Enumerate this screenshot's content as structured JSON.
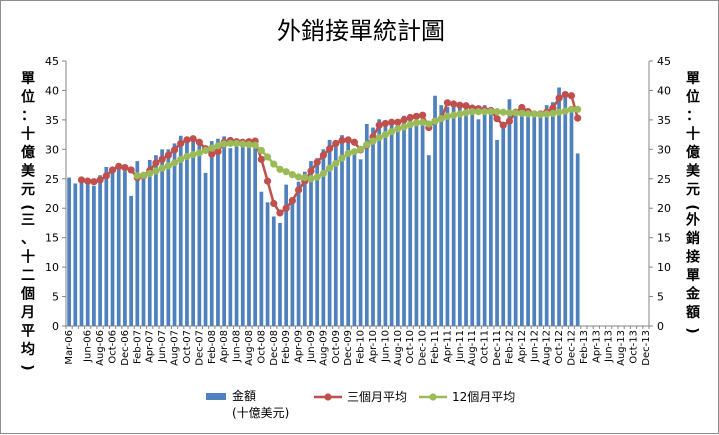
{
  "chart_data": {
    "type": "bar",
    "title": "外銷接單統計圖",
    "ylabel_left": "單位：十億美元(三、十二個月平均)",
    "ylabel_right": "單位：十億美元(外銷接單金額)",
    "ylim": [
      0,
      45
    ],
    "yticks": [
      0,
      5,
      10,
      15,
      20,
      25,
      30,
      35,
      40,
      45
    ],
    "grid": false,
    "legend_position": "bottom",
    "x": [
      "Mar-06",
      "Apr-06",
      "May-06",
      "Jun-06",
      "Jul-06",
      "Aug-06",
      "Sep-06",
      "Oct-06",
      "Nov-06",
      "Dec-06",
      "Jan-07",
      "Feb-07",
      "Mar-07",
      "Apr-07",
      "May-07",
      "Jun-07",
      "Jul-07",
      "Aug-07",
      "Sep-07",
      "Oct-07",
      "Nov-07",
      "Dec-07",
      "Jan-08",
      "Feb-08",
      "Mar-08",
      "Apr-08",
      "May-08",
      "Jun-08",
      "Jul-08",
      "Aug-08",
      "Sep-08",
      "Oct-08",
      "Nov-08",
      "Dec-08",
      "Jan-09",
      "Feb-09",
      "Mar-09",
      "Apr-09",
      "May-09",
      "Jun-09",
      "Jul-09",
      "Aug-09",
      "Sep-09",
      "Oct-09",
      "Nov-09",
      "Dec-09",
      "Jan-10",
      "Feb-10",
      "Mar-10",
      "Apr-10",
      "May-10",
      "Jun-10",
      "Jul-10",
      "Aug-10",
      "Sep-10",
      "Oct-10",
      "Nov-10",
      "Dec-10",
      "Jan-11",
      "Feb-11",
      "Mar-11",
      "Apr-11",
      "May-11",
      "Jun-11",
      "Jul-11",
      "Aug-11",
      "Sep-11",
      "Oct-11",
      "Nov-11",
      "Dec-11",
      "Jan-12",
      "Feb-12",
      "Mar-12",
      "Apr-12",
      "May-12",
      "Jun-12",
      "Jul-12",
      "Aug-12",
      "Sep-12",
      "Oct-12",
      "Nov-12",
      "Dec-12",
      "Jan-13",
      "Feb-13",
      "Mar-13",
      "Apr-13",
      "May-13",
      "Jun-13",
      "Jul-13",
      "Aug-13",
      "Sep-13",
      "Oct-13",
      "Nov-13",
      "Dec-13"
    ],
    "tick_labels": [
      "Mar-06",
      "Jun-06",
      "Aug-06",
      "Oct-06",
      "Dec-06",
      "Feb-07",
      "Apr-07",
      "Jun-07",
      "Aug-07",
      "Oct-07",
      "Dec-07",
      "Feb-08",
      "Apr-08",
      "Jun-08",
      "Aug-08",
      "Oct-08",
      "Dec-08",
      "Feb-09",
      "Apr-09",
      "Jun-09",
      "Aug-09",
      "Oct-09",
      "Dec-09",
      "Feb-10",
      "Apr-10",
      "Jun-10",
      "Aug-10",
      "Oct-10",
      "Dec-10",
      "Feb-11",
      "Apr-11",
      "Jun-11",
      "Aug-11",
      "Oct-11",
      "Dec-11",
      "Feb-12",
      "Apr-12",
      "Jun-12",
      "Aug-12",
      "Oct-12",
      "Dec-12",
      "Feb-13",
      "Apr-13",
      "Jun-13",
      "Aug-13",
      "Oct-13",
      "Dec-13"
    ],
    "series": [
      {
        "name": "金額(十億美元)",
        "legend_lines": [
          "金額",
          "(十億美元)"
        ],
        "kind": "bar",
        "color": "#4f81bd",
        "values": [
          25.2,
          24.2,
          25.0,
          24.5,
          23.8,
          25.6,
          27.0,
          26.8,
          27.5,
          26.3,
          22.1,
          28.0,
          26.0,
          28.2,
          29.0,
          30.0,
          30.0,
          31.0,
          32.3,
          31.4,
          32.3,
          31.1,
          26.0,
          31.4,
          31.8,
          32.2,
          30.2,
          31.6,
          31.0,
          31.6,
          31.9,
          22.8,
          21.0,
          18.6,
          17.5,
          24.0,
          21.4,
          24.5,
          26.2,
          28.0,
          28.5,
          30.0,
          31.6,
          31.1,
          32.4,
          32.0,
          29.2,
          28.3,
          34.3,
          33.7,
          35.1,
          34.6,
          34.2,
          35.1,
          35.7,
          35.3,
          35.8,
          36.2,
          29.0,
          39.1,
          37.5,
          37.2,
          37.8,
          37.5,
          36.9,
          36.7,
          35.1,
          37.5,
          36.4,
          31.6,
          34.2,
          38.5,
          36.2,
          37.4,
          35.8,
          36.1,
          35.4,
          37.5,
          38.0,
          40.5,
          39.5,
          37.2,
          29.3,
          null,
          null,
          null,
          null,
          null,
          null,
          null,
          null,
          null,
          null,
          null
        ]
      },
      {
        "name": "三個月平均",
        "kind": "line",
        "color": "#c0504d",
        "values": [
          null,
          null,
          24.8,
          24.6,
          24.5,
          24.8,
          25.5,
          26.5,
          27.1,
          26.9,
          26.5,
          25.2,
          25.5,
          26.4,
          27.7,
          28.3,
          29.0,
          29.9,
          31.0,
          31.6,
          31.8,
          31.2,
          30.1,
          29.2,
          29.6,
          31.2,
          31.5,
          31.3,
          31.2,
          31.3,
          31.4,
          28.3,
          24.6,
          20.8,
          19.2,
          20.0,
          21.3,
          23.1,
          24.6,
          26.3,
          27.8,
          29.0,
          30.1,
          31.0,
          31.5,
          31.6,
          31.2,
          29.9,
          30.7,
          32.1,
          34.1,
          34.4,
          34.6,
          34.6,
          35.0,
          35.4,
          35.6,
          35.8,
          33.7,
          34.8,
          35.2,
          37.9,
          37.7,
          37.5,
          37.4,
          37.0,
          36.9,
          36.7,
          36.6,
          35.2,
          34.1,
          34.8,
          36.3,
          37.1,
          36.4,
          36.0,
          36.0,
          36.3,
          37.0,
          38.7,
          39.3,
          39.1,
          35.3,
          null,
          null,
          null,
          null,
          null,
          null,
          null,
          null,
          null,
          null,
          null
        ]
      },
      {
        "name": "12個月平均",
        "kind": "line",
        "color": "#9bbb59",
        "values": [
          null,
          null,
          null,
          null,
          null,
          null,
          null,
          null,
          null,
          null,
          null,
          25.5,
          25.6,
          25.9,
          26.3,
          26.8,
          27.2,
          27.7,
          28.3,
          28.8,
          29.1,
          29.4,
          29.8,
          30.2,
          30.6,
          30.9,
          31.0,
          31.0,
          30.9,
          30.8,
          30.7,
          29.8,
          28.7,
          27.5,
          26.6,
          26.2,
          25.7,
          25.3,
          25.2,
          25.0,
          25.3,
          25.9,
          26.8,
          27.6,
          28.5,
          29.3,
          29.6,
          30.0,
          30.8,
          31.4,
          32.0,
          32.5,
          33.0,
          33.5,
          33.8,
          34.2,
          34.5,
          34.6,
          34.3,
          34.8,
          35.2,
          35.6,
          35.8,
          36.0,
          36.2,
          36.4,
          36.4,
          36.4,
          36.4,
          36.4,
          36.3,
          36.2,
          36.2,
          36.1,
          36.0,
          36.0,
          35.9,
          36.0,
          36.1,
          36.3,
          36.5,
          36.8,
          36.8,
          null,
          null,
          null,
          null,
          null,
          null,
          null,
          null,
          null,
          null,
          null
        ]
      }
    ]
  }
}
